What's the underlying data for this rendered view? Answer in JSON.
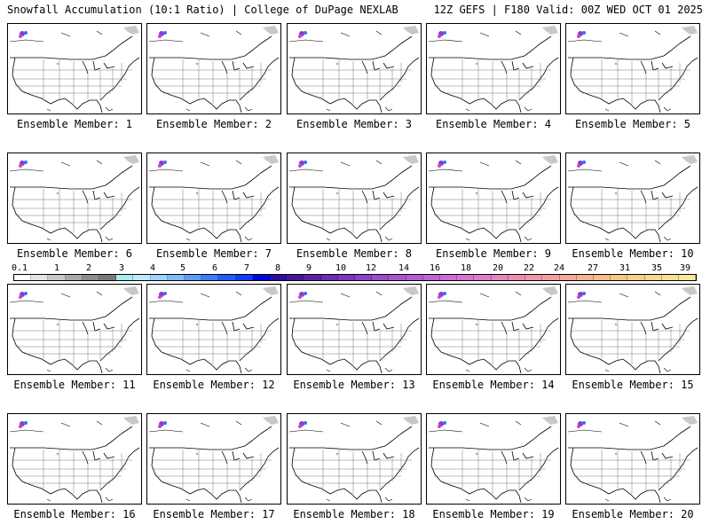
{
  "header": {
    "title": "Snowfall Accumulation (10:1 Ratio) | College of DuPage NEXLAB",
    "run_info": "12Z GEFS | F180 Valid: 00Z WED OCT 01 2025"
  },
  "panels": [
    {
      "label": "Ensemble Member: 1"
    },
    {
      "label": "Ensemble Member: 2"
    },
    {
      "label": "Ensemble Member: 3"
    },
    {
      "label": "Ensemble Member: 4"
    },
    {
      "label": "Ensemble Member: 5"
    },
    {
      "label": "Ensemble Member: 6"
    },
    {
      "label": "Ensemble Member: 7"
    },
    {
      "label": "Ensemble Member: 8"
    },
    {
      "label": "Ensemble Member: 9"
    },
    {
      "label": "Ensemble Member: 10"
    },
    {
      "label": "Ensemble Member: 11"
    },
    {
      "label": "Ensemble Member: 12"
    },
    {
      "label": "Ensemble Member: 13"
    },
    {
      "label": "Ensemble Member: 14"
    },
    {
      "label": "Ensemble Member: 15"
    },
    {
      "label": "Ensemble Member: 16"
    },
    {
      "label": "Ensemble Member: 17"
    },
    {
      "label": "Ensemble Member: 18"
    },
    {
      "label": "Ensemble Member: 19"
    },
    {
      "label": "Ensemble Member: 20"
    }
  ],
  "colorbar": {
    "labels": [
      "0.1",
      "1",
      "2",
      "3",
      "4",
      "5",
      "6",
      "7",
      "8",
      "9",
      "10",
      "12",
      "14",
      "16",
      "18",
      "20",
      "22",
      "24",
      "27",
      "31",
      "35",
      "39"
    ],
    "colors": [
      "#ffffff",
      "#e4e4e4",
      "#c8c8c8",
      "#a9a9a9",
      "#8c8c8c",
      "#7a7a7a",
      "#a8ecf0",
      "#bfe7ff",
      "#9fd3ff",
      "#7fbcff",
      "#5c9cff",
      "#3c7cff",
      "#1f5cff",
      "#0a3cff",
      "#0008d8",
      "#2e0aa8",
      "#4a1496",
      "#5c1ea0",
      "#6e2aae",
      "#7e34bc",
      "#8e40c6",
      "#9c4ace",
      "#a854d4",
      "#b45cd8",
      "#c064d8",
      "#cc6cd4",
      "#d674ce",
      "#de7cc6",
      "#e684bc",
      "#ec8cb2",
      "#f096a8",
      "#f2a09e",
      "#f4aa96",
      "#f5b48e",
      "#f6bd88",
      "#f7c684",
      "#f8cf84",
      "#f9d88a",
      "#fae092",
      "#fbe89c"
    ]
  }
}
